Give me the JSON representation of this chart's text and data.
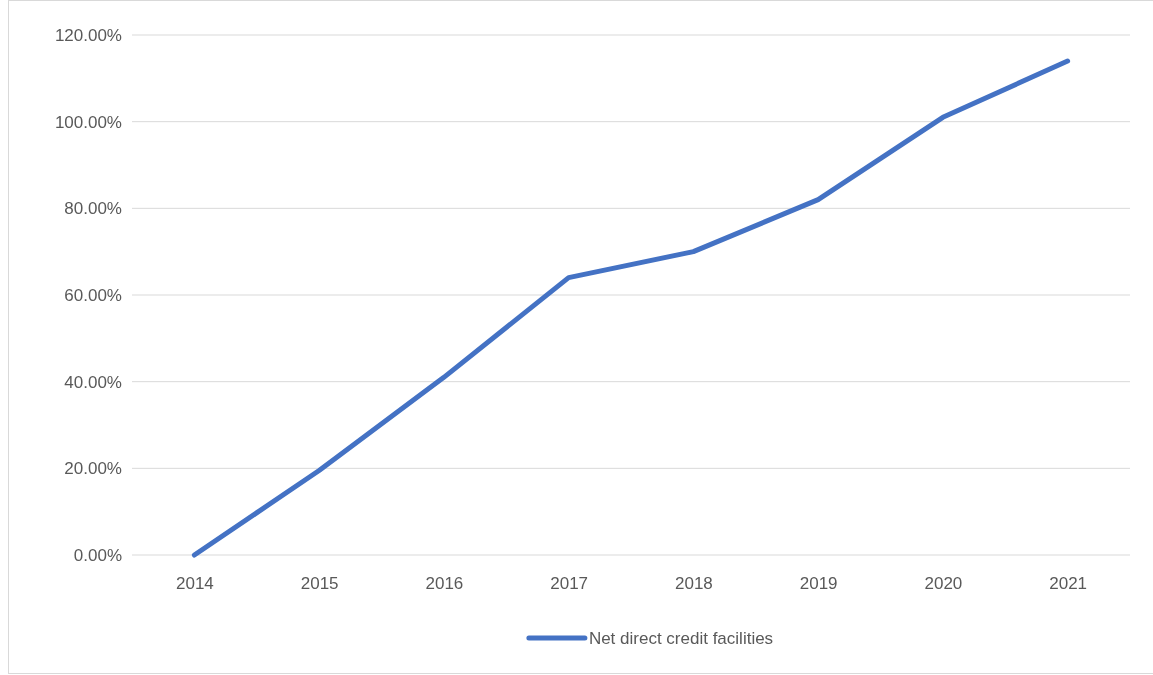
{
  "chart_data": {
    "type": "line",
    "categories": [
      "2014",
      "2015",
      "2016",
      "2017",
      "2018",
      "2019",
      "2020",
      "2021"
    ],
    "series": [
      {
        "name": "Net direct credit facilities",
        "color": "#4472c4",
        "values": [
          0,
          19.5,
          41,
          64,
          70,
          82,
          101,
          114
        ]
      }
    ],
    "ylim": [
      0,
      120
    ],
    "yticks": [
      {
        "value": 0,
        "label": "0.00%"
      },
      {
        "value": 20,
        "label": "20.00%"
      },
      {
        "value": 40,
        "label": "40.00%"
      },
      {
        "value": 60,
        "label": "60.00%"
      },
      {
        "value": 80,
        "label": "80.00%"
      },
      {
        "value": 100,
        "label": "100.00%"
      },
      {
        "value": 120,
        "label": "120.00%"
      }
    ],
    "grid": "y",
    "legend": "bottom",
    "marker": "none",
    "line_style": "solid"
  }
}
